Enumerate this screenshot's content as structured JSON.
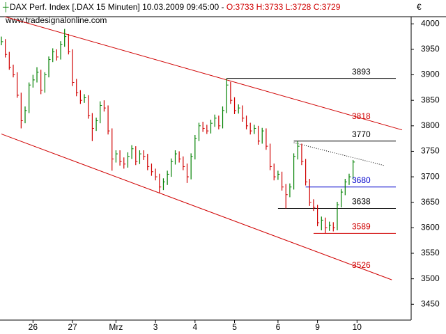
{
  "chart_data": {
    "type": "ohlc",
    "title": "DAX Perf. Index [.DAX  15 Minuten]",
    "timestamp": "10.03.2009 09:45:00 -",
    "quote": [
      "O:3733",
      "H:3733",
      "L:3728",
      "C:3729"
    ],
    "watermark": "www.tradesignalonline.com",
    "currency": "€",
    "up_color": "#008000",
    "down_color": "#d00000",
    "close": [
      3965,
      3940,
      3915,
      3900,
      3860,
      3810,
      3830,
      3880,
      3890,
      3905,
      3870,
      3900,
      3930,
      3945,
      3935,
      3960,
      3975,
      3945,
      3885,
      3865,
      3850,
      3855,
      3820,
      3795,
      3810,
      3840,
      3835,
      3790,
      3735,
      3745,
      3730,
      3725,
      3740,
      3755,
      3730,
      3745,
      3740,
      3720,
      3710,
      3700,
      3680,
      3690,
      3705,
      3730,
      3745,
      3735,
      3720,
      3700,
      3740,
      3775,
      3800,
      3795,
      3790,
      3805,
      3815,
      3800,
      3830,
      3880,
      3850,
      3830,
      3835,
      3815,
      3800,
      3790,
      3795,
      3770,
      3790,
      3760,
      3720,
      3700,
      3705,
      3680,
      3665,
      3680,
      3740,
      3760,
      3730,
      3690,
      3650,
      3640,
      3610,
      3615,
      3600,
      3605,
      3600,
      3645,
      3670,
      3690,
      3700,
      3729
    ],
    "high": [
      3975,
      3970,
      3945,
      3920,
      3905,
      3865,
      3838,
      3885,
      3900,
      3915,
      3910,
      3905,
      3936,
      3952,
      3950,
      3966,
      3990,
      3980,
      3950,
      3892,
      3870,
      3862,
      3860,
      3825,
      3816,
      3848,
      3850,
      3840,
      3795,
      3752,
      3752,
      3738,
      3748,
      3762,
      3760,
      3752,
      3752,
      3745,
      3726,
      3716,
      3706,
      3697,
      3712,
      3736,
      3752,
      3750,
      3740,
      3726,
      3746,
      3782,
      3806,
      3808,
      3802,
      3812,
      3822,
      3820,
      3838,
      3893,
      3886,
      3856,
      3842,
      3840,
      3820,
      3806,
      3802,
      3800,
      3796,
      3795,
      3765,
      3726,
      3712,
      3710,
      3686,
      3687,
      3746,
      3770,
      3765,
      3735,
      3696,
      3656,
      3645,
      3622,
      3620,
      3612,
      3611,
      3651,
      3676,
      3696,
      3706,
      3733
    ],
    "low": [
      3958,
      3934,
      3910,
      3895,
      3855,
      3795,
      3805,
      3825,
      3875,
      3885,
      3862,
      3865,
      3895,
      3925,
      3928,
      3930,
      3955,
      3940,
      3878,
      3858,
      3843,
      3845,
      3814,
      3770,
      3790,
      3805,
      3828,
      3783,
      3712,
      3728,
      3722,
      3716,
      3718,
      3735,
      3723,
      3725,
      3733,
      3713,
      3702,
      3693,
      3668,
      3674,
      3684,
      3700,
      3724,
      3728,
      3713,
      3688,
      3695,
      3734,
      3770,
      3788,
      3784,
      3785,
      3798,
      3793,
      3795,
      3825,
      3843,
      3823,
      3824,
      3808,
      3793,
      3783,
      3784,
      3763,
      3765,
      3753,
      3713,
      3693,
      3694,
      3673,
      3638,
      3660,
      3675,
      3734,
      3723,
      3683,
      3643,
      3633,
      3603,
      3595,
      3589,
      3594,
      3593,
      3595,
      3640,
      3664,
      3684,
      3695
    ],
    "xlim": [
      -0.35,
      103.7
    ],
    "xticks": [
      {
        "value": 8,
        "label": "26"
      },
      {
        "value": 18,
        "label": "27"
      },
      {
        "value": 29,
        "label": "Mrz"
      },
      {
        "value": 39,
        "label": "3"
      },
      {
        "value": 49,
        "label": "4"
      },
      {
        "value": 59,
        "label": "5"
      },
      {
        "value": 70,
        "label": "6"
      },
      {
        "value": 80,
        "label": "9"
      },
      {
        "value": 90,
        "label": "10"
      }
    ],
    "ylim": [
      3419,
      4014
    ],
    "yticks": [
      3450,
      3500,
      3550,
      3600,
      3650,
      3700,
      3750,
      3800,
      3850,
      3900,
      3950,
      4000
    ],
    "levels": [
      {
        "value": 3893,
        "color": "#000000",
        "from": 57,
        "line": true
      },
      {
        "value": 3818,
        "color": "#d00000",
        "line": false
      },
      {
        "value": 3770,
        "color": "#000000",
        "from": 74,
        "line": true
      },
      {
        "value": 3680,
        "color": "#0000cc",
        "from": 77,
        "line": true
      },
      {
        "value": 3638,
        "color": "#000000",
        "from": 70,
        "line": true
      },
      {
        "value": 3589,
        "color": "#d00000",
        "from": 79,
        "line": true
      },
      {
        "value": 3526,
        "color": "#d00000",
        "line": false
      }
    ],
    "trendlines": [
      {
        "x": [
          0,
          101.4
        ],
        "y": [
          4016,
          3792
        ],
        "color": "#d00000",
        "dashed": false
      },
      {
        "x": [
          0,
          98.8
        ],
        "y": [
          3784,
          3498
        ],
        "color": "#d00000",
        "dashed": false
      },
      {
        "x": [
          74,
          97
        ],
        "y": [
          3767,
          3722
        ],
        "color": "#000000",
        "dashed": true
      }
    ]
  }
}
